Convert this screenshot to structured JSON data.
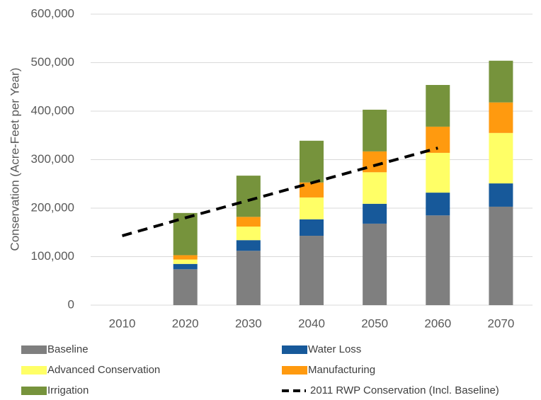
{
  "chart_data": {
    "type": "bar",
    "stacked": true,
    "y_label": "Conservation (Acre-Feet per Year)",
    "categories": [
      "2010",
      "2020",
      "2030",
      "2040",
      "2050",
      "2060",
      "2070"
    ],
    "series": [
      {
        "name": "Baseline",
        "color": "#7f7f7f",
        "values": [
          null,
          74000,
          112000,
          143000,
          168000,
          185000,
          203000
        ]
      },
      {
        "name": "Water Loss",
        "color": "#17599a",
        "values": [
          null,
          11000,
          22000,
          34000,
          41000,
          47000,
          48000
        ]
      },
      {
        "name": "Advanced Conservation",
        "color": "#ffff66",
        "values": [
          null,
          9000,
          28000,
          45000,
          65000,
          82000,
          104000
        ]
      },
      {
        "name": "Manufacturing",
        "color": "#ff9a0f",
        "values": [
          null,
          9000,
          20000,
          31000,
          43000,
          54000,
          63000
        ]
      },
      {
        "name": "Irrigation",
        "color": "#76933c",
        "values": [
          null,
          87000,
          85000,
          86000,
          86000,
          86000,
          86000
        ]
      },
      {
        "name": "2011 RWP Conservation (Incl. Baseline)",
        "color": "#000000",
        "type": "line",
        "dashed": true,
        "values": [
          143000,
          180000,
          216000,
          252000,
          288000,
          324000,
          null
        ]
      }
    ],
    "ylim": [
      0,
      600000
    ],
    "yticks": [
      0,
      {
        "value": 100000,
        "label": "100,000"
      },
      {
        "value": 200000,
        "label": "200,000"
      },
      {
        "value": 300000,
        "label": "300,000"
      },
      {
        "value": 400000,
        "label": "400,000"
      },
      {
        "value": 500000,
        "label": "500,000"
      },
      {
        "value": 600000,
        "label": "600,000"
      }
    ],
    "grid": true,
    "legend": "bottom"
  }
}
